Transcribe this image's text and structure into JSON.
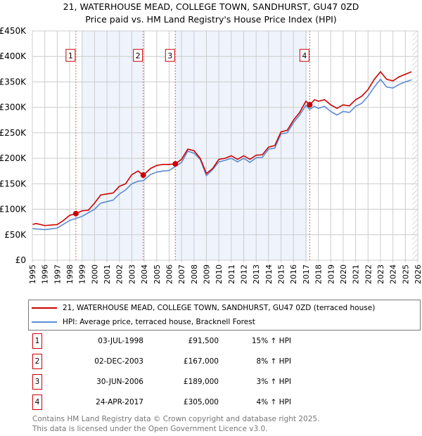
{
  "title": "21, WATERHOUSE MEAD, COLLEGE TOWN, SANDHURST, GU47 0ZD",
  "subtitle": "Price paid vs. HM Land Registry's House Price Index (HPI)",
  "chart_data": {
    "type": "line",
    "xlim": [
      1995,
      2026
    ],
    "ylim": [
      0,
      450000
    ],
    "yticks": [
      {
        "v": 0,
        "l": "£0"
      },
      {
        "v": 50000,
        "l": "£50K"
      },
      {
        "v": 100000,
        "l": "£100K"
      },
      {
        "v": 150000,
        "l": "£150K"
      },
      {
        "v": 200000,
        "l": "£200K"
      },
      {
        "v": 250000,
        "l": "£250K"
      },
      {
        "v": 300000,
        "l": "£300K"
      },
      {
        "v": 350000,
        "l": "£350K"
      },
      {
        "v": 400000,
        "l": "£400K"
      },
      {
        "v": 450000,
        "l": "£450K"
      }
    ],
    "xticks": [
      "1995",
      "1996",
      "1997",
      "1998",
      "1999",
      "2000",
      "2001",
      "2002",
      "2003",
      "2004",
      "2005",
      "2006",
      "2007",
      "2008",
      "2009",
      "2010",
      "2011",
      "2012",
      "2013",
      "2014",
      "2015",
      "2016",
      "2017",
      "2018",
      "2019",
      "2020",
      "2021",
      "2022",
      "2023",
      "2024",
      "2025",
      "2026"
    ],
    "shaded_periods": [
      [
        1999.0,
        2003.92
      ],
      [
        2006.5,
        2017.1
      ]
    ],
    "forecast_from": 2025.55,
    "series": [
      {
        "name": "21, WATERHOUSE MEAD, COLLEGE TOWN, SANDHURST, GU47 0ZD (terraced house)",
        "color": "#cc0000",
        "x": [
          1995,
          1995.3,
          1996,
          1997,
          1997.5,
          1998,
          1998.5,
          1999,
          1999.5,
          2000,
          2000.5,
          2001,
          2001.5,
          2002,
          2002.5,
          2003,
          2003.5,
          2003.92,
          2004.5,
          2005,
          2005.5,
          2006,
          2006.5,
          2007,
          2007.5,
          2008,
          2008.5,
          2009,
          2009.5,
          2010,
          2010.5,
          2011,
          2011.5,
          2012,
          2012.5,
          2013,
          2013.5,
          2014,
          2014.5,
          2015,
          2015.5,
          2016,
          2016.5,
          2017,
          2017.3,
          2017.7,
          2018,
          2018.5,
          2019,
          2019.5,
          2020,
          2020.5,
          2021,
          2021.5,
          2022,
          2022.5,
          2023,
          2023.5,
          2024,
          2024.5,
          2025,
          2025.5
        ],
        "y": [
          70,
          72,
          68,
          70,
          78,
          88,
          91.5,
          97,
          98,
          112,
          128,
          130,
          132,
          145,
          150,
          168,
          175,
          167,
          180,
          186,
          188,
          188,
          189,
          198,
          218,
          215,
          200,
          170,
          180,
          198,
          200,
          205,
          198,
          205,
          198,
          206,
          207,
          222,
          225,
          252,
          255,
          275,
          290,
          312,
          305,
          315,
          312,
          315,
          305,
          298,
          305,
          303,
          315,
          322,
          335,
          355,
          370,
          355,
          352,
          360,
          365,
          370
        ]
      },
      {
        "name": "HPI: Average price, terraced house, Bracknell Forest",
        "color": "#5b8bd0",
        "x": [
          1995,
          1996,
          1997,
          1998,
          1998.5,
          1999,
          2000,
          2000.5,
          2001,
          2001.5,
          2002,
          2002.5,
          2003,
          2003.5,
          2003.92,
          2004.5,
          2005,
          2005.5,
          2006,
          2006.5,
          2007,
          2007.5,
          2008,
          2008.5,
          2009,
          2009.5,
          2010,
          2010.5,
          2011,
          2011.5,
          2012,
          2012.5,
          2013,
          2013.5,
          2014,
          2014.5,
          2015,
          2015.5,
          2016,
          2016.5,
          2017,
          2017.3,
          2017.7,
          2018,
          2018.5,
          2019,
          2019.5,
          2020,
          2020.5,
          2021,
          2021.5,
          2022,
          2022.5,
          2023,
          2023.5,
          2024,
          2024.5,
          2025,
          2025.5
        ],
        "y": [
          62,
          60,
          63,
          78,
          82,
          86,
          100,
          112,
          115,
          118,
          130,
          138,
          150,
          155,
          156,
          168,
          173,
          175,
          176,
          184,
          192,
          214,
          210,
          198,
          166,
          178,
          193,
          196,
          200,
          193,
          200,
          192,
          201,
          202,
          218,
          220,
          248,
          250,
          270,
          285,
          304,
          296,
          302,
          298,
          302,
          292,
          285,
          292,
          290,
          302,
          308,
          322,
          340,
          355,
          340,
          338,
          345,
          350,
          354
        ]
      }
    ],
    "sales": [
      {
        "n": "1",
        "x": 1998.5,
        "y": 91.5
      },
      {
        "n": "2",
        "x": 2003.92,
        "y": 167
      },
      {
        "n": "3",
        "x": 2006.5,
        "y": 189
      },
      {
        "n": "4",
        "x": 2017.31,
        "y": 305
      }
    ]
  },
  "legend": {
    "property": "21, WATERHOUSE MEAD, COLLEGE TOWN, SANDHURST, GU47 0ZD (terraced house)",
    "hpi": "HPI: Average price, terraced house, Bracknell Forest"
  },
  "transactions": [
    {
      "n": "1",
      "date": "03-JUL-1998",
      "price": "£91,500",
      "hpi": "15% ↑ HPI"
    },
    {
      "n": "2",
      "date": "02-DEC-2003",
      "price": "£167,000",
      "hpi": "8% ↑ HPI"
    },
    {
      "n": "3",
      "date": "30-JUN-2006",
      "price": "£189,000",
      "hpi": "3% ↑ HPI"
    },
    {
      "n": "4",
      "date": "24-APR-2017",
      "price": "£305,000",
      "hpi": "4% ↑ HPI"
    }
  ],
  "footer": {
    "line1": "Contains HM Land Registry data © Crown copyright and database right 2025.",
    "line2": "This data is licensed under the Open Government Licence v3.0."
  }
}
